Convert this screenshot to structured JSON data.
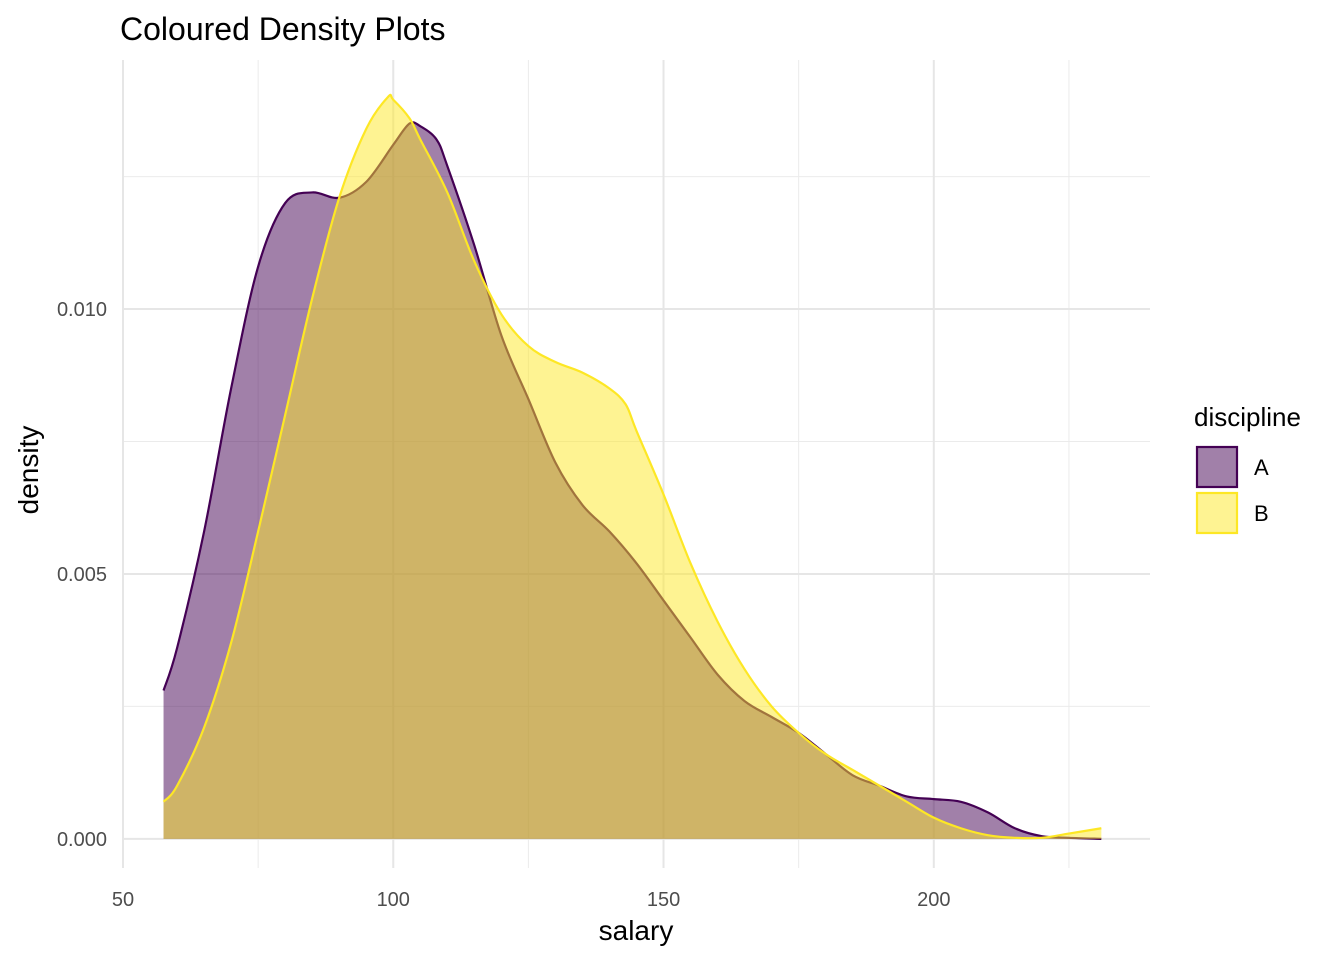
{
  "chart_data": {
    "type": "area",
    "title": "Coloured Density Plots",
    "xlabel": "salary",
    "ylabel": "density",
    "xlim": [
      50,
      240
    ],
    "ylim": [
      -0.00055,
      0.0147
    ],
    "x_ticks": [
      50,
      100,
      150,
      200
    ],
    "x_tick_labels": [
      "50",
      "100",
      "150",
      "200"
    ],
    "y_ticks": [
      0.0,
      0.005,
      0.01
    ],
    "y_tick_labels": [
      "0.000",
      "0.005",
      "0.010"
    ],
    "grid": true,
    "legend": {
      "title": "discipline",
      "position": "right"
    },
    "series": [
      {
        "name": "A",
        "color": "#440154",
        "fill": "#440154",
        "fill_opacity": 0.5,
        "x": [
          57.5,
          60,
          65,
          70,
          75,
          80,
          85,
          90,
          95,
          100,
          103,
          105,
          108,
          110,
          115,
          120,
          125,
          130,
          135,
          140,
          145,
          150,
          155,
          160,
          165,
          170,
          175,
          180,
          185,
          190,
          195,
          200,
          205,
          210,
          215,
          220,
          225,
          231
        ],
        "y": [
          0.0028,
          0.0036,
          0.0058,
          0.0085,
          0.0108,
          0.012,
          0.0122,
          0.0121,
          0.0124,
          0.0131,
          0.0135,
          0.01345,
          0.0132,
          0.0127,
          0.0112,
          0.0095,
          0.0083,
          0.0071,
          0.0063,
          0.0058,
          0.0052,
          0.0045,
          0.0038,
          0.0031,
          0.0026,
          0.0023,
          0.002,
          0.0016,
          0.0012,
          0.001,
          0.0008,
          0.00075,
          0.0007,
          0.0005,
          0.0002,
          5e-05,
          2e-05,
          0.0
        ]
      },
      {
        "name": "B",
        "color": "#fde725",
        "fill": "#fde725",
        "fill_opacity": 0.5,
        "x": [
          57.5,
          60,
          65,
          70,
          75,
          80,
          85,
          90,
          95,
          99,
          100,
          103,
          105,
          110,
          115,
          120,
          125,
          130,
          135,
          140,
          143,
          145,
          150,
          155,
          160,
          165,
          170,
          175,
          180,
          185,
          190,
          195,
          200,
          205,
          210,
          215,
          220,
          225,
          231
        ],
        "y": [
          0.0007,
          0.001,
          0.0021,
          0.0037,
          0.0058,
          0.008,
          0.0102,
          0.0121,
          0.0134,
          0.014,
          0.01395,
          0.0136,
          0.0132,
          0.0122,
          0.0109,
          0.0099,
          0.0093,
          0.009,
          0.0088,
          0.0085,
          0.0082,
          0.0077,
          0.0065,
          0.0052,
          0.0041,
          0.0032,
          0.0025,
          0.002,
          0.0016,
          0.0013,
          0.001,
          0.0007,
          0.0004,
          0.0002,
          7e-05,
          2e-05,
          2e-05,
          0.0001,
          0.0002
        ]
      }
    ]
  }
}
